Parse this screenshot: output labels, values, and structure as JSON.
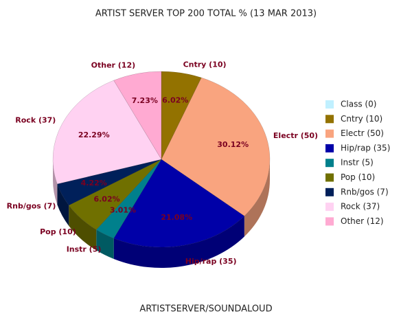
{
  "chart_data": {
    "type": "pie",
    "title": "ARTIST SERVER TOP 200 TOTAL % (13 MAR 2013)",
    "caption": "ARTISTSERVER/SOUNDALOUD",
    "categories": [
      "Class (0)",
      "Cntry (10)",
      "Electr (50)",
      "Hip/rap (35)",
      "Instr (5)",
      "Pop (10)",
      "Rnb/gos (7)",
      "Rock (37)",
      "Other (12)"
    ],
    "values": [
      0,
      6.02,
      30.12,
      21.08,
      3.01,
      6.02,
      4.22,
      22.29,
      7.23
    ],
    "value_labels": [
      null,
      "6.02%",
      "30.12%",
      "21.08%",
      "3.01%",
      "6.02%",
      "4.22%",
      "22.29%",
      "7.23%"
    ],
    "colors": [
      "#c0f0ff",
      "#937200",
      "#f9a47f",
      "#0000a8",
      "#00808c",
      "#707000",
      "#00205a",
      "#ffd2f2",
      "#ffaad2"
    ],
    "legend": "right"
  }
}
